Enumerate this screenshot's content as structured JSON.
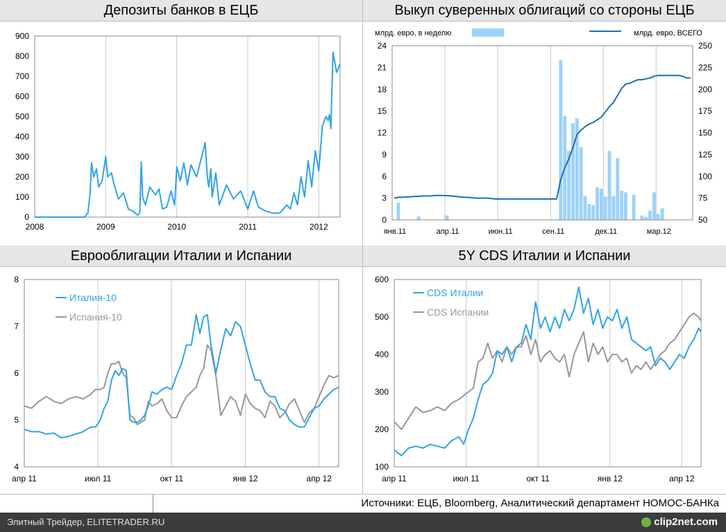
{
  "charts": {
    "deposits": {
      "title": "Депозиты банков в ЕЦБ",
      "color": "#2ea3ea",
      "chart_data": {
        "type": "line",
        "title": "Депозиты банков в ЕЦБ",
        "ylim": [
          0,
          900
        ],
        "yticks": [
          "0",
          "100",
          "200",
          "300",
          "400",
          "500",
          "600",
          "700",
          "800",
          "900"
        ],
        "xlim": [
          2008.0,
          2012.3
        ],
        "xticks": [
          {
            "v": 2008,
            "label": "2008"
          },
          {
            "v": 2009,
            "label": "2009"
          },
          {
            "v": 2010,
            "label": "2010"
          },
          {
            "v": 2011,
            "label": "2011"
          },
          {
            "v": 2012,
            "label": "2012"
          }
        ],
        "x": [
          2008.0,
          2008.5,
          2008.7,
          2008.75,
          2008.78,
          2008.8,
          2008.83,
          2008.87,
          2008.9,
          2008.95,
          2009.0,
          2009.03,
          2009.08,
          2009.12,
          2009.18,
          2009.25,
          2009.32,
          2009.38,
          2009.45,
          2009.48,
          2009.5,
          2009.52,
          2009.56,
          2009.62,
          2009.7,
          2009.75,
          2009.8,
          2009.86,
          2009.92,
          2009.97,
          2010.0,
          2010.05,
          2010.1,
          2010.15,
          2010.2,
          2010.28,
          2010.35,
          2010.4,
          2010.43,
          2010.45,
          2010.48,
          2010.5,
          2010.55,
          2010.6,
          2010.7,
          2010.8,
          2010.9,
          2011.0,
          2011.08,
          2011.15,
          2011.25,
          2011.35,
          2011.45,
          2011.55,
          2011.6,
          2011.65,
          2011.7,
          2011.75,
          2011.8,
          2011.85,
          2011.9,
          2011.95,
          2012.0,
          2012.05,
          2012.1,
          2012.13,
          2012.15,
          2012.17,
          2012.2,
          2012.25,
          2012.3
        ],
        "values": [
          0,
          0,
          0,
          20,
          120,
          270,
          200,
          240,
          150,
          180,
          300,
          200,
          220,
          160,
          90,
          120,
          40,
          30,
          10,
          20,
          275,
          100,
          60,
          150,
          110,
          140,
          40,
          50,
          130,
          60,
          250,
          180,
          270,
          160,
          260,
          200,
          300,
          370,
          200,
          150,
          240,
          100,
          220,
          60,
          160,
          90,
          130,
          40,
          130,
          50,
          30,
          20,
          20,
          60,
          40,
          120,
          60,
          200,
          100,
          280,
          150,
          330,
          230,
          450,
          500,
          480,
          510,
          440,
          820,
          720,
          760
        ]
      }
    },
    "bonds": {
      "title": "Выкуп суверенных облигаций со стороны ЕЦБ",
      "bar_legend": "млрд. евро, в неделю",
      "line_legend": "млрд. евро, ВСЕГО",
      "bar_color": "#9dd2f7",
      "line_color": "#1b6fb5",
      "chart_data": {
        "type": "bar",
        "title": "Выкуп суверенных облигаций со стороны ЕЦБ",
        "ylim_left": [
          0,
          24
        ],
        "yticks_left": [
          "0",
          "3",
          "6",
          "9",
          "12",
          "15",
          "18",
          "21",
          "24"
        ],
        "ylim_right": [
          50,
          250
        ],
        "yticks_right": [
          "50",
          "75",
          "100",
          "125",
          "150",
          "175",
          "200",
          "225",
          "250"
        ],
        "xticks": [
          {
            "w": 0,
            "label": "янв.11"
          },
          {
            "w": 13,
            "label": "апр.11"
          },
          {
            "w": 26,
            "label": "июн.11"
          },
          {
            "w": 39,
            "label": "сен.11"
          },
          {
            "w": 52,
            "label": "дек.11"
          },
          {
            "w": 65,
            "label": "мар.12"
          }
        ],
        "n_weeks": 74,
        "weekly": [
          0,
          2.4,
          0,
          0,
          0,
          0,
          0.5,
          0,
          0,
          0,
          0,
          0,
          0,
          0.6,
          0,
          0,
          0,
          0,
          0,
          0,
          0,
          0,
          0,
          0,
          0,
          0,
          0,
          0,
          0,
          0,
          0,
          0,
          0,
          0,
          0,
          0,
          0,
          0,
          0,
          0,
          0,
          22,
          14.3,
          9.5,
          13.3,
          14,
          10,
          3.3,
          2.2,
          2,
          4.5,
          4.3,
          3.2,
          9.5,
          3.3,
          8.5,
          4,
          3.8,
          0,
          3.5,
          0,
          0.6,
          0.4,
          1.3,
          3.8,
          0.8,
          1.6,
          0,
          0,
          0,
          0,
          0,
          0,
          0
        ],
        "total": [
          75,
          76,
          76,
          76.5,
          76.5,
          77,
          77,
          77.5,
          77.5,
          77.5,
          78,
          78,
          78,
          77.8,
          77.5,
          77,
          76.5,
          76,
          76,
          75.5,
          75,
          75,
          75,
          75,
          74.5,
          74,
          74,
          74,
          74,
          74,
          74,
          74,
          74,
          74,
          74,
          74,
          74,
          74,
          74,
          74,
          74,
          96,
          110,
          120,
          133,
          148,
          153,
          157,
          160,
          162,
          165,
          168,
          174,
          180,
          185,
          193,
          201,
          206,
          207,
          209,
          211,
          211,
          212,
          213,
          215,
          216,
          216,
          216,
          216,
          216,
          216,
          215,
          213,
          213
        ]
      }
    },
    "eurobonds": {
      "title": "Еврооблигации Италии и Испании",
      "chart_data": {
        "type": "line",
        "title": "Еврооблигации Италии и Испании",
        "ylim": [
          4,
          8
        ],
        "yticks": [
          "4",
          "5",
          "6",
          "7",
          "8"
        ],
        "xticks": [
          {
            "v": 0,
            "label": "апр 11"
          },
          {
            "v": 3,
            "label": "июл 11"
          },
          {
            "v": 6,
            "label": "окт 11"
          },
          {
            "v": 9,
            "label": "янв 12"
          },
          {
            "v": 12,
            "label": "апр 12"
          }
        ],
        "xlim": [
          0,
          12.8
        ],
        "series": [
          {
            "name": "Италия-10",
            "color": "#2ea3ea",
            "x": [
              0,
              0.3,
              0.6,
              0.9,
              1.2,
              1.5,
              1.8,
              2.1,
              2.4,
              2.7,
              2.9,
              3.1,
              3.25,
              3.4,
              3.55,
              3.7,
              3.85,
              4.0,
              4.15,
              4.3,
              4.45,
              4.6,
              4.75,
              4.9,
              5.05,
              5.2,
              5.4,
              5.6,
              5.8,
              6.0,
              6.2,
              6.4,
              6.6,
              6.8,
              7.0,
              7.15,
              7.3,
              7.45,
              7.6,
              7.8,
              8.0,
              8.2,
              8.4,
              8.6,
              8.8,
              9.0,
              9.2,
              9.4,
              9.6,
              9.8,
              10.0,
              10.2,
              10.4,
              10.6,
              10.8,
              11.0,
              11.2,
              11.4,
              11.6,
              11.8,
              12.0,
              12.2,
              12.4,
              12.6,
              12.8
            ],
            "values": [
              4.8,
              4.75,
              4.75,
              4.7,
              4.72,
              4.62,
              4.65,
              4.7,
              4.75,
              4.85,
              4.85,
              5.0,
              5.25,
              5.4,
              5.85,
              6.05,
              5.95,
              6.1,
              6.05,
              5.0,
              4.95,
              4.95,
              5.0,
              5.1,
              5.3,
              5.6,
              5.55,
              5.65,
              5.7,
              5.65,
              5.95,
              6.2,
              6.6,
              6.6,
              7.25,
              6.85,
              7.2,
              7.25,
              6.6,
              6.0,
              6.5,
              6.95,
              6.8,
              7.1,
              7.0,
              6.6,
              6.2,
              5.85,
              5.85,
              5.6,
              5.5,
              5.5,
              5.25,
              5.2,
              5.0,
              4.9,
              4.85,
              4.85,
              5.05,
              5.25,
              5.3,
              5.45,
              5.55,
              5.65,
              5.7
            ]
          },
          {
            "name": "Испания-10",
            "color": "#9a9696",
            "x": [
              0,
              0.3,
              0.6,
              0.9,
              1.2,
              1.5,
              1.8,
              2.1,
              2.4,
              2.7,
              2.9,
              3.1,
              3.25,
              3.4,
              3.55,
              3.7,
              3.85,
              4.0,
              4.15,
              4.3,
              4.45,
              4.6,
              4.75,
              4.9,
              5.05,
              5.2,
              5.4,
              5.6,
              5.8,
              6.0,
              6.2,
              6.4,
              6.6,
              6.8,
              7.0,
              7.15,
              7.3,
              7.45,
              7.6,
              7.8,
              8.0,
              8.2,
              8.4,
              8.6,
              8.8,
              9.0,
              9.2,
              9.4,
              9.6,
              9.8,
              10.0,
              10.2,
              10.4,
              10.6,
              10.8,
              11.0,
              11.2,
              11.4,
              11.6,
              11.8,
              12.0,
              12.2,
              12.4,
              12.6,
              12.8
            ],
            "values": [
              5.3,
              5.25,
              5.4,
              5.5,
              5.4,
              5.35,
              5.45,
              5.5,
              5.45,
              5.55,
              5.65,
              5.65,
              5.7,
              6.0,
              6.2,
              6.2,
              6.25,
              6.0,
              5.9,
              5.1,
              5.05,
              4.9,
              4.95,
              5.0,
              5.4,
              5.3,
              5.35,
              5.45,
              5.2,
              5.05,
              5.05,
              5.3,
              5.5,
              5.6,
              5.7,
              5.95,
              6.1,
              6.6,
              6.5,
              5.95,
              5.1,
              5.3,
              5.5,
              5.4,
              5.1,
              5.55,
              5.35,
              5.25,
              5.2,
              5.05,
              5.4,
              5.3,
              5.05,
              5.15,
              5.35,
              5.45,
              5.2,
              4.95,
              5.15,
              5.25,
              5.5,
              5.75,
              5.95,
              5.9,
              5.95
            ]
          }
        ]
      }
    },
    "cds": {
      "title": "5Y CDS Италии и Испании",
      "chart_data": {
        "type": "line",
        "title": "5Y CDS Италии и Испании",
        "ylim": [
          100,
          600
        ],
        "yticks": [
          "100",
          "200",
          "300",
          "400",
          "500",
          "600"
        ],
        "xticks": [
          {
            "v": 0,
            "label": "апр 11"
          },
          {
            "v": 3,
            "label": "июл 11"
          },
          {
            "v": 6,
            "label": "окт 11"
          },
          {
            "v": 9,
            "label": "янв 12"
          },
          {
            "v": 12,
            "label": "апр 12"
          }
        ],
        "xlim": [
          0,
          12.8
        ],
        "series": [
          {
            "name": "CDS Италии",
            "color": "#2ea3ea",
            "x": [
              0,
              0.3,
              0.6,
              0.9,
              1.2,
              1.5,
              1.8,
              2.1,
              2.4,
              2.7,
              2.9,
              3.1,
              3.3,
              3.5,
              3.7,
              3.9,
              4.1,
              4.3,
              4.5,
              4.7,
              4.9,
              5.1,
              5.3,
              5.5,
              5.7,
              5.9,
              6.1,
              6.3,
              6.5,
              6.7,
              6.9,
              7.1,
              7.3,
              7.5,
              7.7,
              7.9,
              8.1,
              8.3,
              8.5,
              8.7,
              8.9,
              9.1,
              9.3,
              9.5,
              9.7,
              9.9,
              10.1,
              10.3,
              10.5,
              10.7,
              10.9,
              11.1,
              11.3,
              11.5,
              11.7,
              11.9,
              12.1,
              12.3,
              12.5,
              12.7,
              12.8
            ],
            "values": [
              145,
              130,
              150,
              155,
              150,
              160,
              155,
              150,
              170,
              180,
              160,
              200,
              230,
              280,
              320,
              330,
              350,
              410,
              400,
              420,
              380,
              420,
              430,
              480,
              440,
              540,
              470,
              500,
              460,
              500,
              470,
              520,
              490,
              520,
              580,
              510,
              550,
              480,
              520,
              470,
              500,
              490,
              520,
              470,
              500,
              440,
              430,
              420,
              410,
              420,
              370,
              390,
              380,
              360,
              380,
              400,
              390,
              420,
              440,
              470,
              460
            ]
          },
          {
            "name": "CDS Испании",
            "color": "#9a9696",
            "x": [
              0,
              0.3,
              0.6,
              0.9,
              1.2,
              1.5,
              1.8,
              2.1,
              2.4,
              2.7,
              2.9,
              3.1,
              3.3,
              3.5,
              3.7,
              3.9,
              4.1,
              4.3,
              4.5,
              4.7,
              4.9,
              5.1,
              5.3,
              5.5,
              5.7,
              5.9,
              6.1,
              6.3,
              6.5,
              6.7,
              6.9,
              7.1,
              7.3,
              7.5,
              7.7,
              7.9,
              8.1,
              8.3,
              8.5,
              8.7,
              8.9,
              9.1,
              9.3,
              9.5,
              9.7,
              9.9,
              10.1,
              10.3,
              10.5,
              10.7,
              10.9,
              11.1,
              11.3,
              11.5,
              11.7,
              11.9,
              12.1,
              12.3,
              12.5,
              12.7,
              12.8
            ],
            "values": [
              220,
              200,
              230,
              260,
              245,
              250,
              260,
              250,
              270,
              280,
              290,
              300,
              310,
              380,
              390,
              430,
              390,
              410,
              380,
              420,
              400,
              420,
              420,
              450,
              400,
              440,
              380,
              400,
              410,
              390,
              380,
              400,
              340,
              400,
              430,
              460,
              380,
              430,
              400,
              420,
              380,
              400,
              400,
              380,
              390,
              350,
              370,
              360,
              380,
              360,
              380,
              400,
              410,
              430,
              440,
              460,
              480,
              500,
              510,
              500,
              490
            ]
          }
        ]
      }
    }
  },
  "footer": {
    "sources": "Источники: ЕЦБ, Bloomberg, Аналитический департамент НОМОС-БАНКа",
    "site": "Элитный Трейдер, ELITETRADER.RU",
    "logo": "clip2net.com"
  }
}
